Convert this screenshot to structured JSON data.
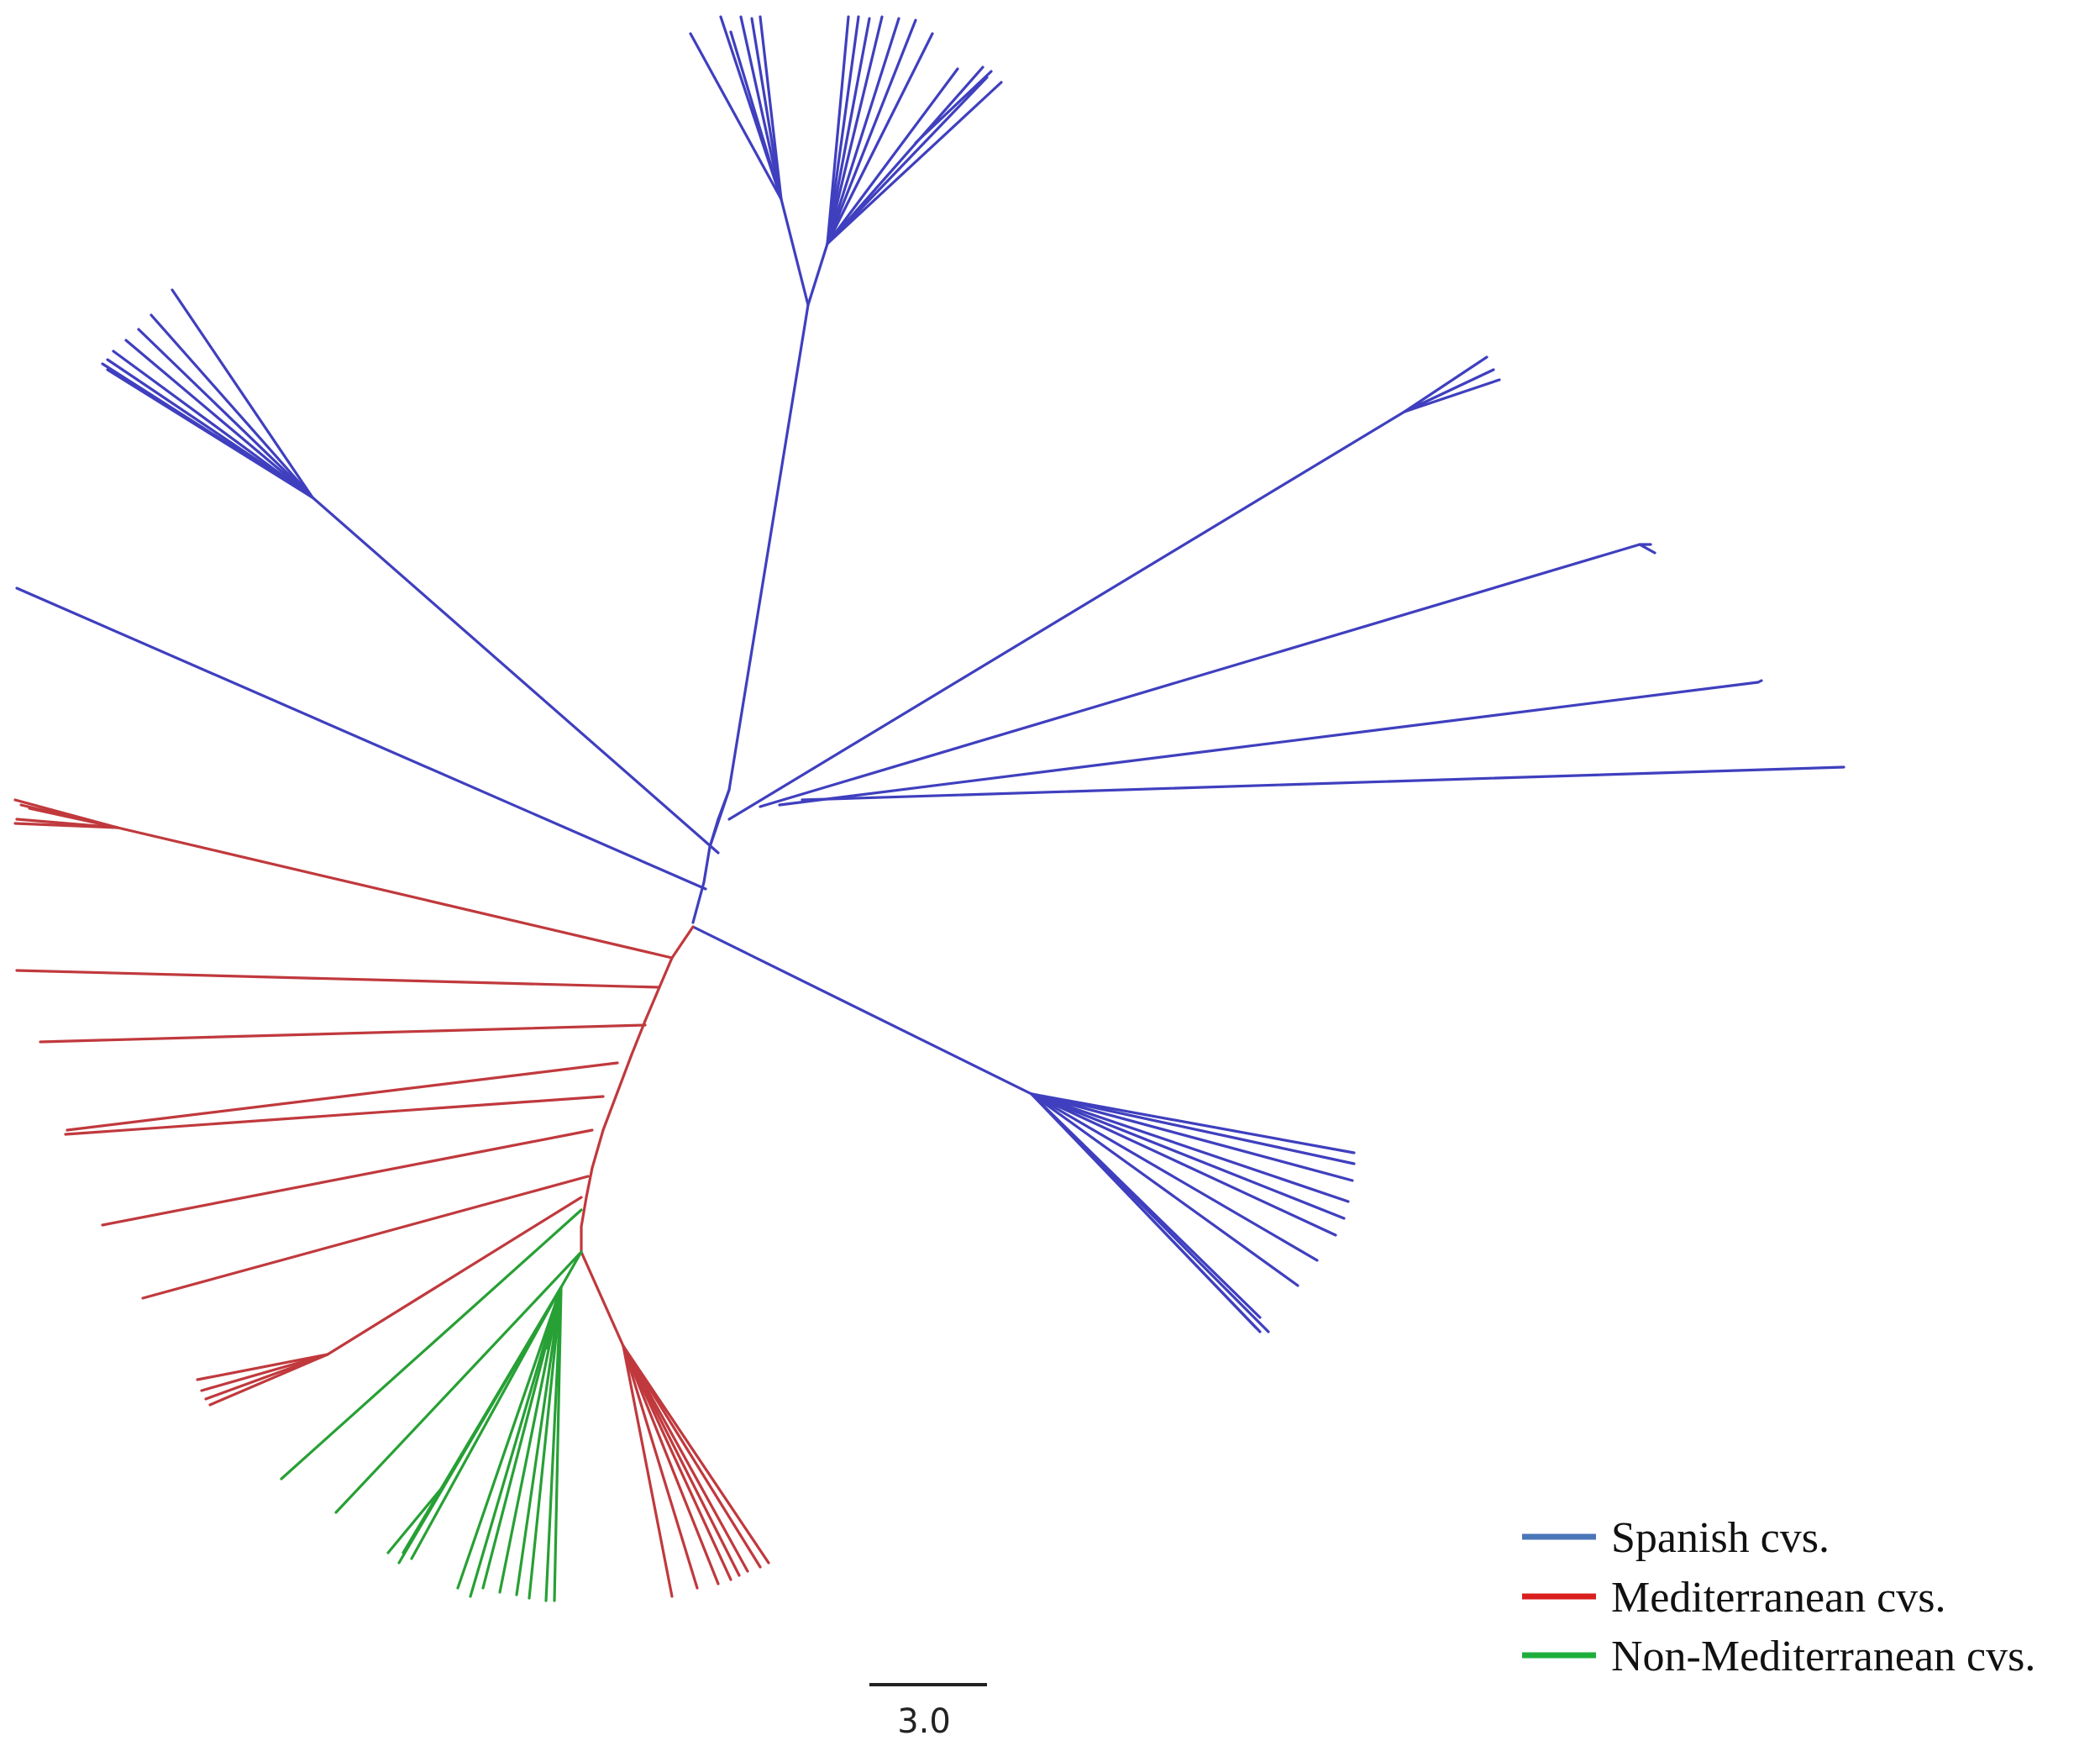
{
  "colors": {
    "spanish": "#3f3fbf",
    "mediterranean": "#c0393d",
    "non_mediterranean": "#27a035",
    "legend_spanish": "#4a76b8",
    "legend_mediterranean": "#d91e1e",
    "legend_non_mediterranean": "#1fae3c"
  },
  "legend": {
    "items": [
      {
        "key": "spanish",
        "label": "Spanish cvs."
      },
      {
        "key": "mediterranean",
        "label": "Mediterranean cvs."
      },
      {
        "key": "non_mediterranean",
        "label": "Non-Mediterranean cvs."
      }
    ]
  },
  "scale_bar": {
    "label": "3.0"
  }
}
